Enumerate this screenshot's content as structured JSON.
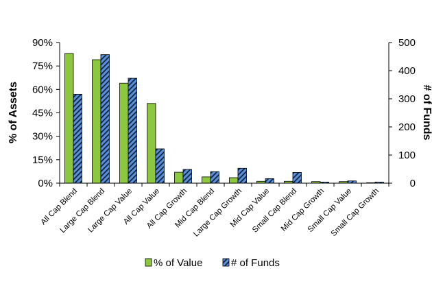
{
  "chart_data": {
    "type": "bar",
    "title": "",
    "categories": [
      "All Cap Blend",
      "Large Cap Blend",
      "Large Cap Value",
      "All Cap Value",
      "All Cap Growth",
      "Mid Cap Blend",
      "Large Cap Growth",
      "Mid Cap Value",
      "Small Cap Blend",
      "Mid Cap Growth",
      "Small Cap Value",
      "Small Cap Growth"
    ],
    "series": [
      {
        "name": "% of Value",
        "axis": "left",
        "color": "#8dc63f",
        "pattern": "solid",
        "values": [
          83,
          79,
          64,
          51,
          7,
          4,
          3.5,
          1.2,
          1.2,
          1,
          1,
          0.3
        ]
      },
      {
        "name": "# of Funds",
        "axis": "right",
        "color": "#5b8fd6",
        "pattern": "diagonal-hatch",
        "values": [
          316,
          457,
          373,
          122,
          49,
          41,
          53,
          16,
          38,
          4,
          8,
          4
        ]
      }
    ],
    "ylabel": "% of Assets",
    "y2label": "# of Funds",
    "ylim": [
      0,
      90
    ],
    "y2lim": [
      0,
      500
    ],
    "yticks": [
      "0%",
      "15%",
      "30%",
      "45%",
      "60%",
      "75%",
      "90%"
    ],
    "y2ticks": [
      "0",
      "100",
      "200",
      "300",
      "400",
      "500"
    ],
    "grid": false,
    "legend": "bottom-center"
  }
}
